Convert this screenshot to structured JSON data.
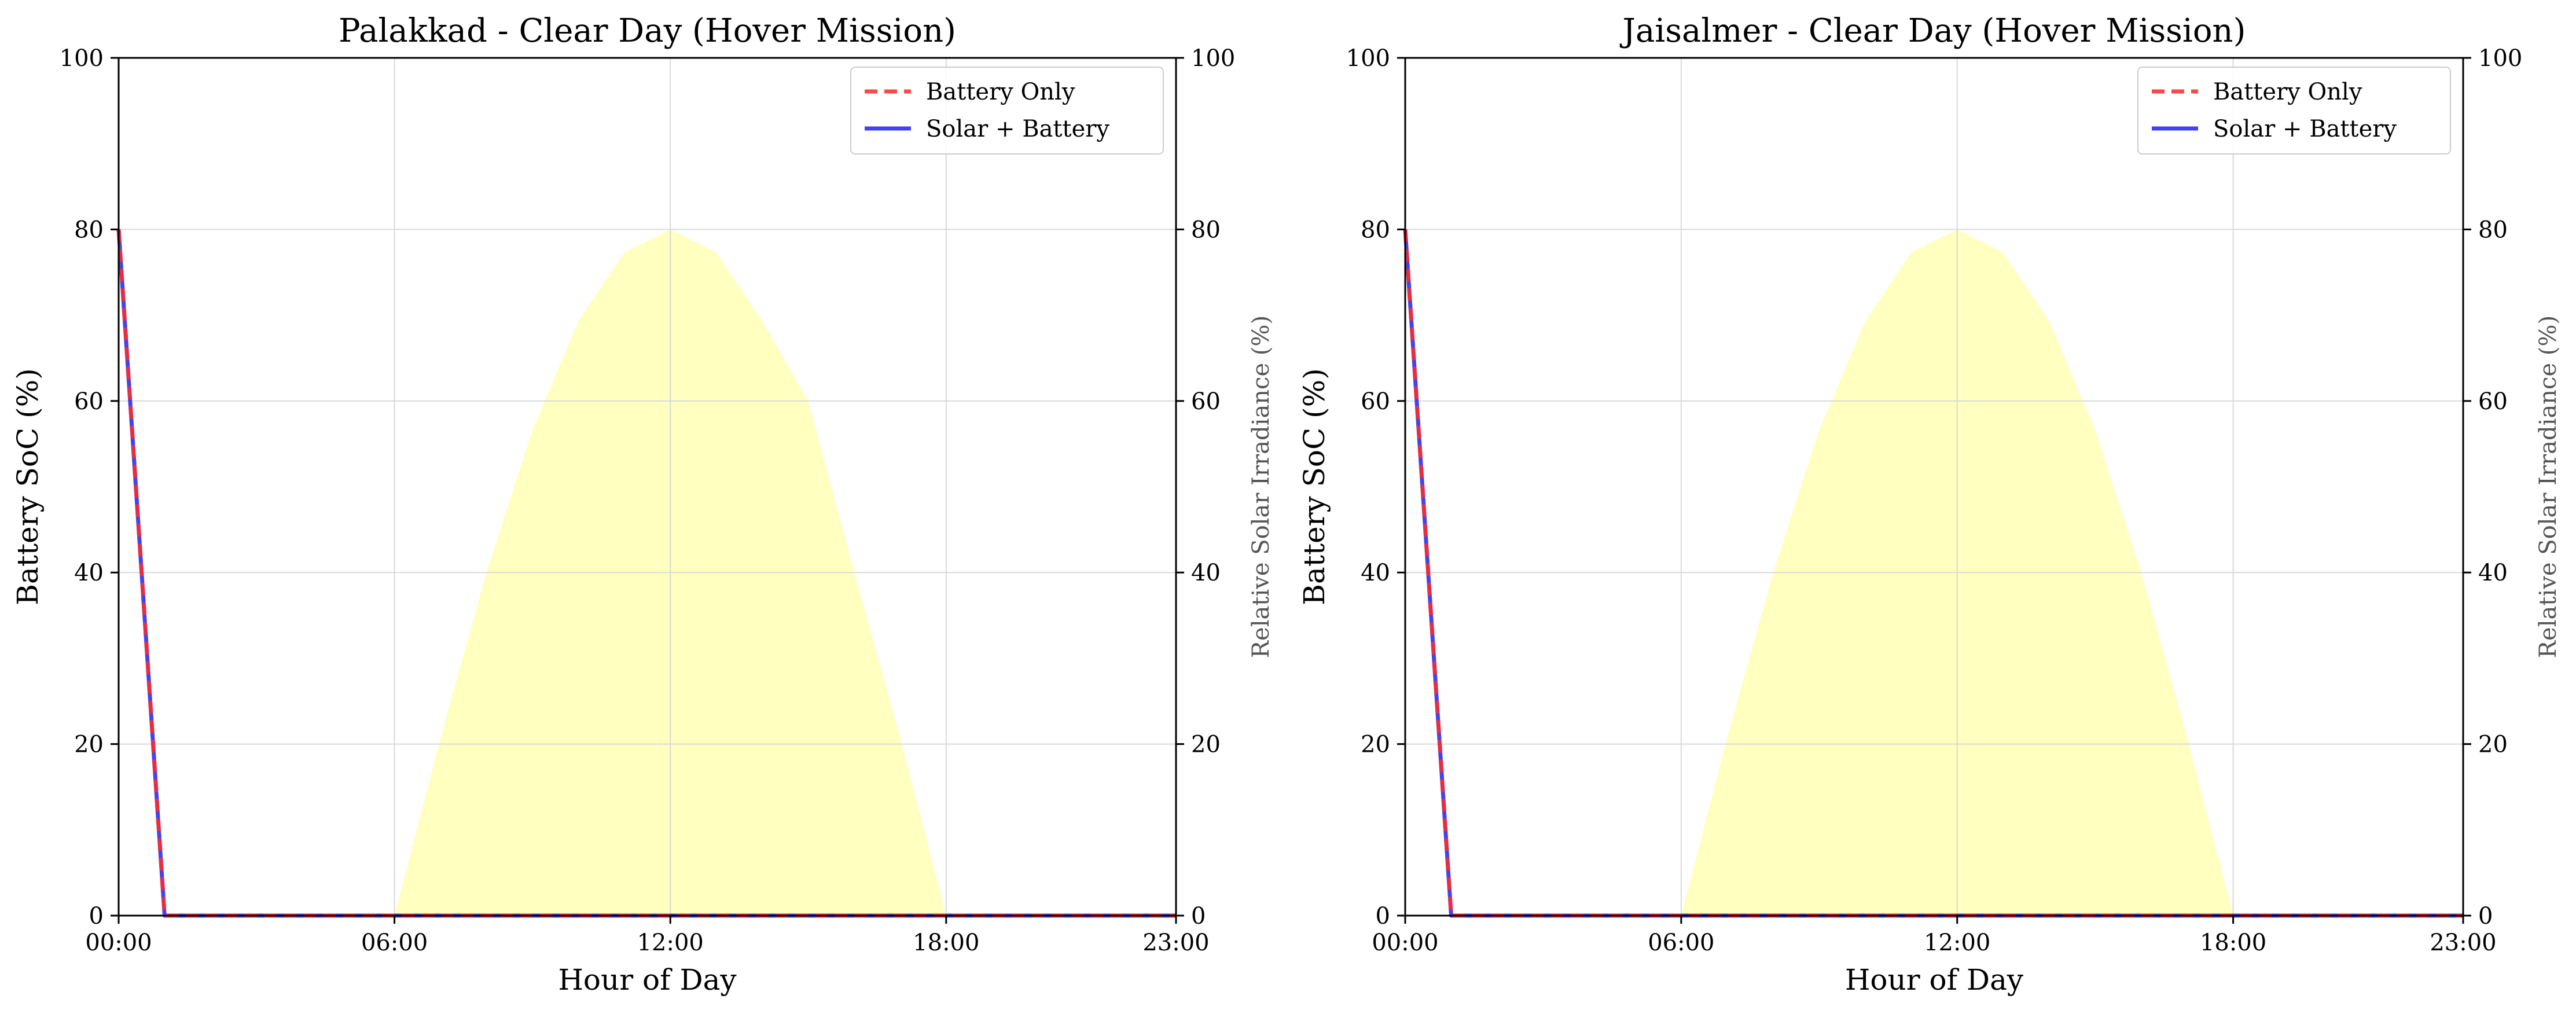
{
  "chart_data": [
    {
      "type": "line",
      "title": "Palakkad - Clear Day (Hover Mission)",
      "xlabel": "Hour of Day",
      "ylabel": "Battery SoC (%)",
      "y2label": "Relative Solar Irradiance (%)",
      "xlim": [
        0,
        23
      ],
      "ylim": [
        0,
        100
      ],
      "y2lim": [
        0,
        100
      ],
      "x_ticks": [
        {
          "value": 0,
          "label": "00:00"
        },
        {
          "value": 6,
          "label": "06:00"
        },
        {
          "value": 12,
          "label": "12:00"
        },
        {
          "value": 18,
          "label": "18:00"
        },
        {
          "value": 23,
          "label": "23:00"
        }
      ],
      "y_ticks": [
        0,
        20,
        40,
        60,
        80,
        100
      ],
      "y2_ticks": [
        0,
        20,
        40,
        60,
        80,
        100
      ],
      "grid": true,
      "legend_position": "top-right",
      "series": [
        {
          "name": "Battery Only",
          "color": "#ff2a2a",
          "style": "dashed",
          "x": [
            0,
            1,
            2,
            3,
            4,
            5,
            6,
            7,
            8,
            9,
            10,
            11,
            12,
            13,
            14,
            15,
            16,
            17,
            18,
            19,
            20,
            21,
            22,
            23
          ],
          "values": [
            80,
            0,
            0,
            0,
            0,
            0,
            0,
            0,
            0,
            0,
            0,
            0,
            0,
            0,
            0,
            0,
            0,
            0,
            0,
            0,
            0,
            0,
            0,
            0
          ]
        },
        {
          "name": "Solar + Battery",
          "color": "#2222ee",
          "style": "solid",
          "x": [
            0,
            1,
            2,
            3,
            4,
            5,
            6,
            7,
            8,
            9,
            10,
            11,
            12,
            13,
            14,
            15,
            16,
            17,
            18,
            19,
            20,
            21,
            22,
            23
          ],
          "values": [
            80,
            0,
            0,
            0,
            0,
            0,
            0,
            0,
            0,
            0,
            0,
            0,
            0,
            0,
            0,
            0,
            0,
            0,
            0,
            0,
            0,
            0,
            0,
            0
          ]
        }
      ],
      "irradiance": {
        "color": "#ffffc0",
        "x": [
          6,
          7,
          8,
          9,
          10,
          11,
          12,
          13,
          14,
          15,
          16,
          17,
          18
        ],
        "values": [
          0,
          20.7,
          40,
          56.6,
          69.3,
          77.3,
          80,
          77.3,
          69.3,
          60,
          40,
          20.7,
          0
        ]
      }
    },
    {
      "type": "line",
      "title": "Jaisalmer - Clear Day (Hover Mission)",
      "xlabel": "Hour of Day",
      "ylabel": "Battery SoC (%)",
      "y2label": "Relative Solar Irradiance (%)",
      "xlim": [
        0,
        23
      ],
      "ylim": [
        0,
        100
      ],
      "y2lim": [
        0,
        100
      ],
      "x_ticks": [
        {
          "value": 0,
          "label": "00:00"
        },
        {
          "value": 6,
          "label": "06:00"
        },
        {
          "value": 12,
          "label": "12:00"
        },
        {
          "value": 18,
          "label": "18:00"
        },
        {
          "value": 23,
          "label": "23:00"
        }
      ],
      "y_ticks": [
        0,
        20,
        40,
        60,
        80,
        100
      ],
      "y2_ticks": [
        0,
        20,
        40,
        60,
        80,
        100
      ],
      "grid": true,
      "legend_position": "top-right",
      "series": [
        {
          "name": "Battery Only",
          "color": "#ff2a2a",
          "style": "dashed",
          "x": [
            0,
            1,
            2,
            3,
            4,
            5,
            6,
            7,
            8,
            9,
            10,
            11,
            12,
            13,
            14,
            15,
            16,
            17,
            18,
            19,
            20,
            21,
            22,
            23
          ],
          "values": [
            80,
            0,
            0,
            0,
            0,
            0,
            0,
            0,
            0,
            0,
            0,
            0,
            0,
            0,
            0,
            0,
            0,
            0,
            0,
            0,
            0,
            0,
            0,
            0
          ]
        },
        {
          "name": "Solar + Battery",
          "color": "#2222ee",
          "style": "solid",
          "x": [
            0,
            1,
            2,
            3,
            4,
            5,
            6,
            7,
            8,
            9,
            10,
            11,
            12,
            13,
            14,
            15,
            16,
            17,
            18,
            19,
            20,
            21,
            22,
            23
          ],
          "values": [
            80,
            0,
            0,
            0,
            0,
            0,
            0,
            0,
            0,
            0,
            0,
            0,
            0,
            0,
            0,
            0,
            0,
            0,
            0,
            0,
            0,
            0,
            0,
            0
          ]
        }
      ],
      "irradiance": {
        "color": "#ffffc0",
        "x": [
          6,
          7,
          8,
          9,
          10,
          11,
          12,
          13,
          14,
          15,
          16,
          17,
          18
        ],
        "values": [
          0,
          20.7,
          40,
          56.6,
          69.3,
          77.3,
          80,
          77.3,
          69.3,
          56.6,
          40,
          20.7,
          0
        ]
      }
    }
  ]
}
